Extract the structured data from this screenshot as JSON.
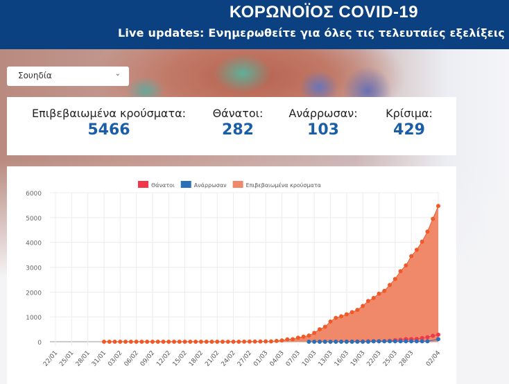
{
  "header": {
    "title": "ΚΟΡΩΝΟΪΟΣ COVID-19",
    "subtitle": "Live updates: Ενημερωθείτε για όλες τις τελευταίες εξελίξεις",
    "background": "#0b4180"
  },
  "country_select": {
    "value": "Σουηδία",
    "icon": "chevron-down-icon"
  },
  "stats": [
    {
      "label": "Επιβεβαιωμένα κρούσματα:",
      "value": "5466"
    },
    {
      "label": "Θάνατοι:",
      "value": "282"
    },
    {
      "label": "Ανάρρωσαν:",
      "value": "103"
    },
    {
      "label": "Κρίσιμα:",
      "value": "429"
    }
  ],
  "chart_data": {
    "type": "line",
    "ylim": [
      0,
      6000
    ],
    "yticks": [
      0,
      1000,
      2000,
      3000,
      4000,
      5000,
      6000
    ],
    "grid": true,
    "legend_position": "top",
    "x": [
      "22/01",
      "23/01",
      "24/01",
      "25/01",
      "26/01",
      "27/01",
      "28/01",
      "29/01",
      "30/01",
      "31/01",
      "01/02",
      "02/02",
      "03/02",
      "04/02",
      "05/02",
      "06/02",
      "07/02",
      "08/02",
      "09/02",
      "10/02",
      "11/02",
      "12/02",
      "13/02",
      "14/02",
      "15/02",
      "16/02",
      "17/02",
      "18/02",
      "19/02",
      "20/02",
      "21/02",
      "22/02",
      "23/02",
      "24/02",
      "25/02",
      "26/02",
      "27/02",
      "28/02",
      "29/02",
      "01/03",
      "02/03",
      "03/03",
      "04/03",
      "05/03",
      "06/03",
      "07/03",
      "08/03",
      "09/03",
      "10/03",
      "11/03",
      "12/03",
      "13/03",
      "14/03",
      "15/03",
      "16/03",
      "17/03",
      "18/03",
      "19/03",
      "20/03",
      "21/03",
      "22/03",
      "23/03",
      "24/03",
      "25/03",
      "26/03",
      "27/03",
      "28/03",
      "29/03",
      "30/03",
      "31/03",
      "01/04",
      "02/04"
    ],
    "xtick_labels": [
      "22/01",
      "25/01",
      "28/01",
      "31/01",
      "03/02",
      "06/02",
      "09/02",
      "12/02",
      "15/02",
      "18/02",
      "21/02",
      "24/02",
      "27/02",
      "01/03",
      "04/03",
      "07/03",
      "10/03",
      "13/03",
      "16/03",
      "19/03",
      "22/03",
      "25/03",
      "28/03",
      "02/04"
    ],
    "series": [
      {
        "name": "Θάνατοι",
        "color": "#f0384a",
        "values": [
          null,
          null,
          null,
          null,
          null,
          null,
          null,
          null,
          null,
          null,
          null,
          null,
          null,
          null,
          null,
          null,
          null,
          null,
          null,
          null,
          null,
          null,
          null,
          null,
          null,
          null,
          null,
          null,
          null,
          null,
          null,
          null,
          null,
          null,
          null,
          null,
          null,
          null,
          null,
          null,
          null,
          null,
          null,
          null,
          null,
          null,
          null,
          null,
          null,
          1,
          1,
          1,
          2,
          3,
          6,
          7,
          10,
          11,
          16,
          20,
          21,
          25,
          36,
          62,
          77,
          105,
          105,
          110,
          146,
          180,
          239,
          282
        ]
      },
      {
        "name": "Ανάρρωσαν",
        "color": "#2a6fb8",
        "values": [
          null,
          null,
          null,
          null,
          null,
          null,
          null,
          null,
          null,
          null,
          null,
          null,
          null,
          null,
          null,
          null,
          null,
          null,
          null,
          null,
          null,
          null,
          null,
          null,
          null,
          null,
          null,
          null,
          null,
          null,
          null,
          null,
          null,
          null,
          null,
          null,
          null,
          null,
          null,
          null,
          null,
          null,
          null,
          null,
          null,
          null,
          null,
          1,
          1,
          1,
          1,
          1,
          1,
          1,
          1,
          1,
          1,
          1,
          1,
          16,
          16,
          16,
          16,
          16,
          16,
          16,
          16,
          16,
          16,
          16,
          null,
          103
        ]
      },
      {
        "name": "Επιβεβαιωμένα κρούσματα",
        "color": "#f0896a",
        "point_color": "#f05a2a",
        "values": [
          null,
          null,
          null,
          null,
          null,
          null,
          null,
          null,
          null,
          1,
          1,
          1,
          1,
          1,
          1,
          1,
          1,
          1,
          1,
          1,
          1,
          1,
          1,
          1,
          1,
          1,
          1,
          1,
          1,
          1,
          1,
          1,
          1,
          1,
          1,
          2,
          7,
          7,
          12,
          14,
          15,
          30,
          52,
          94,
          101,
          161,
          203,
          248,
          355,
          500,
          599,
          814,
          961,
          1022,
          1103,
          1190,
          1279,
          1439,
          1639,
          1763,
          1934,
          2046,
          2286,
          2526,
          2840,
          3069,
          3447,
          3700,
          4028,
          4435,
          4947,
          5466
        ]
      }
    ]
  }
}
